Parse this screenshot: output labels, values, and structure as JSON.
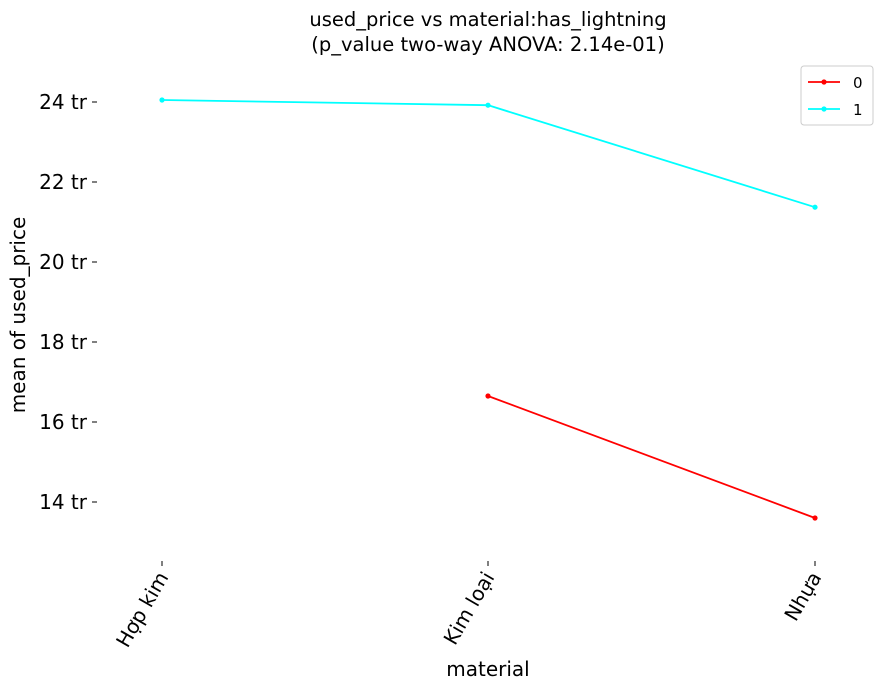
{
  "chart_data": {
    "type": "line",
    "title_line1": "used_price vs material:has_lightning",
    "title_line2": "(p_value two-way ANOVA: 2.14e-01)",
    "xlabel": "material",
    "ylabel": "mean of used_price",
    "categories": [
      "Hợp kim",
      "Kim loại",
      "Nhựa"
    ],
    "y_ticks": [
      14,
      16,
      18,
      20,
      22,
      24
    ],
    "y_tick_suffix": " tr",
    "ylim": [
      12.5,
      25.0
    ],
    "grid": false,
    "legend_placement": "top-right",
    "series": [
      {
        "name": "0",
        "color": "#ff0000",
        "values": [
          null,
          16.65,
          13.6
        ]
      },
      {
        "name": "1",
        "color": "#00ffff",
        "values": [
          24.05,
          23.92,
          21.37
        ]
      }
    ]
  }
}
